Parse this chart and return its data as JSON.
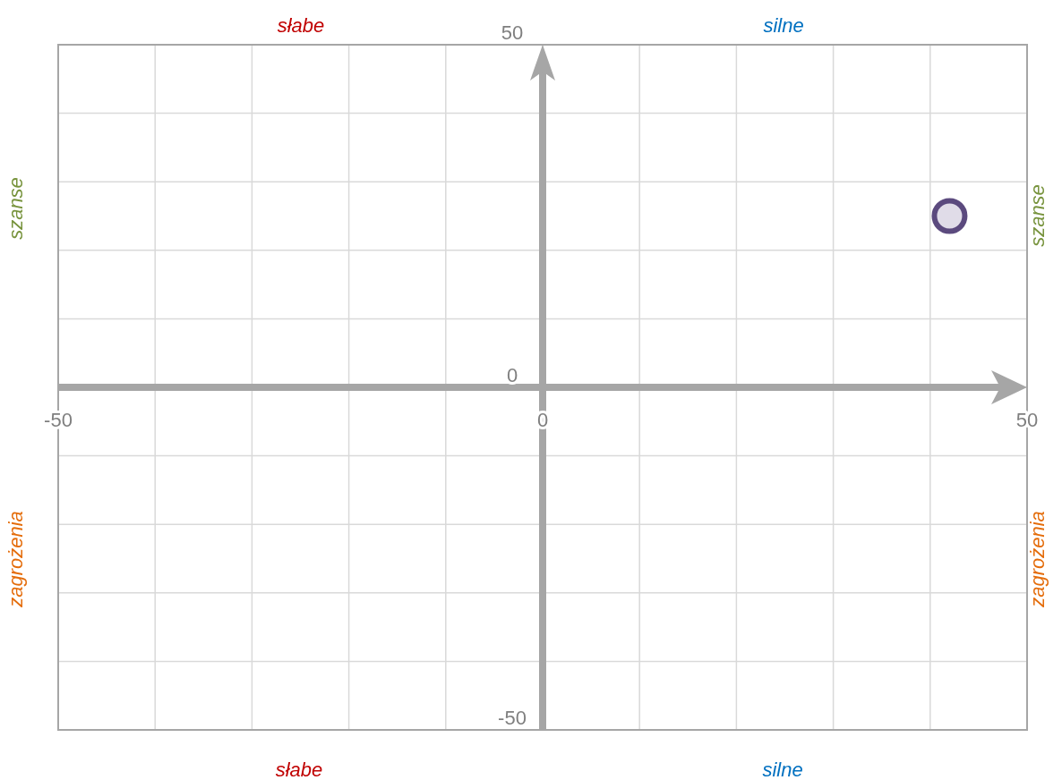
{
  "chart_data": {
    "type": "scatter",
    "x": [
      42
    ],
    "series": [
      {
        "color": "#5b4a7e",
        "values": [
          25
        ]
      }
    ],
    "marker": "circle",
    "xlim": [
      -50,
      50
    ],
    "ylim": [
      -50,
      50
    ],
    "xticks": [
      -50,
      {
        "value": -40,
        "label": null
      },
      {
        "value": -30,
        "label": null
      },
      {
        "value": -20,
        "label": null
      },
      {
        "value": -10,
        "label": null
      },
      0,
      {
        "value": 10,
        "label": null
      },
      {
        "value": 20,
        "label": null
      },
      {
        "value": 30,
        "label": null
      },
      {
        "value": 40,
        "label": null
      },
      50
    ],
    "yticks": [
      -50,
      {
        "value": -40,
        "label": null
      },
      {
        "value": -30,
        "label": null
      },
      {
        "value": -20,
        "label": null
      },
      {
        "value": -10,
        "label": null
      },
      0,
      {
        "value": 10,
        "label": null
      },
      {
        "value": 20,
        "label": null
      },
      {
        "value": 30,
        "label": null
      },
      {
        "value": 40,
        "label": null
      },
      50
    ],
    "grid": true,
    "annotations": [
      "słabe",
      "silne",
      "szanse",
      "szanse",
      "zagrożenia",
      "zagrożenia",
      "słabe",
      "silne"
    ]
  }
}
